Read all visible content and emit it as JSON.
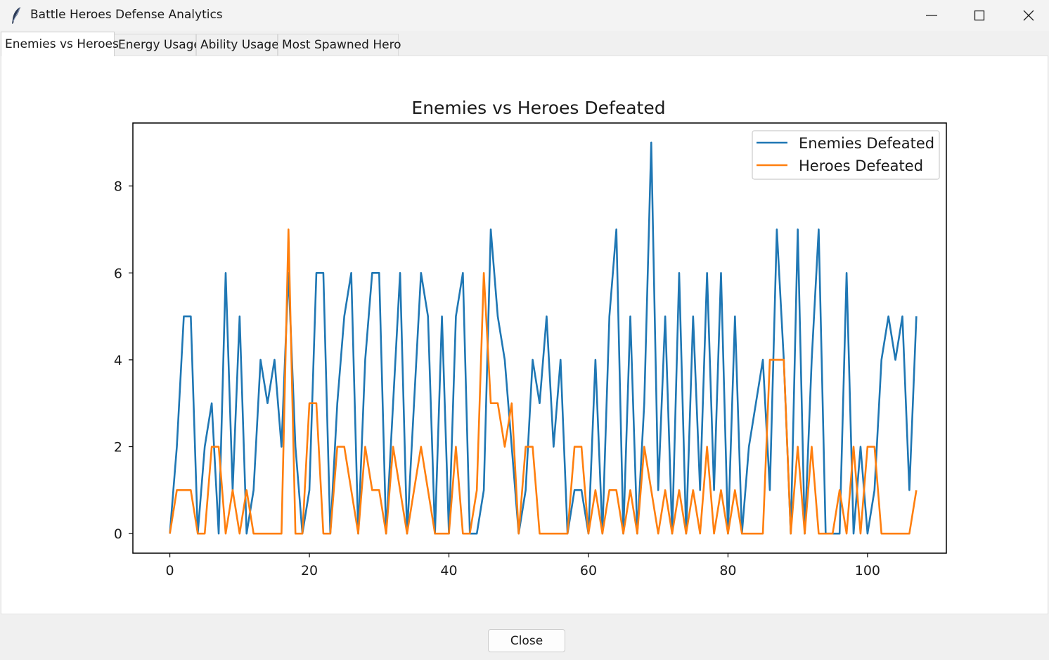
{
  "window": {
    "title": "Battle Heroes Defense Analytics"
  },
  "tabs": [
    {
      "label": "Enemies vs Heroes",
      "active": true
    },
    {
      "label": "Energy Usage",
      "active": false
    },
    {
      "label": "Ability Usage",
      "active": false
    },
    {
      "label": "Most Spawned Hero",
      "active": false
    }
  ],
  "footer": {
    "close_label": "Close"
  },
  "icons": {
    "app": "feather-icon",
    "minimize": "minimize-icon",
    "maximize": "maximize-icon",
    "close": "close-icon"
  },
  "chart_data": {
    "type": "line",
    "title": "Enemies vs Heroes Defeated",
    "xlabel": "",
    "ylabel": "",
    "xlim": [
      -5.3,
      111.3
    ],
    "ylim": [
      -0.45,
      9.45
    ],
    "xticks": [
      0,
      20,
      40,
      60,
      80,
      100
    ],
    "yticks": [
      0,
      2,
      4,
      6,
      8
    ],
    "grid": false,
    "legend": "top-right",
    "series": [
      {
        "name": "Enemies Defeated",
        "color": "#1f77b4",
        "values": [
          0,
          2,
          5,
          5,
          0,
          2,
          3,
          0,
          6,
          1,
          5,
          0,
          1,
          4,
          3,
          4,
          2,
          6,
          2,
          0,
          1,
          6,
          6,
          0,
          3,
          5,
          6,
          0,
          4,
          6,
          6,
          0,
          3,
          6,
          0,
          3,
          6,
          5,
          0,
          5,
          0,
          5,
          6,
          0,
          0,
          1,
          7,
          5,
          4,
          2,
          0,
          1,
          4,
          3,
          5,
          2,
          4,
          0,
          1,
          1,
          0,
          4,
          0,
          5,
          7,
          0,
          5,
          0,
          3,
          9,
          1,
          5,
          0,
          6,
          0,
          5,
          1,
          6,
          1,
          6,
          0,
          5,
          0,
          2,
          3,
          4,
          1,
          7,
          4,
          0,
          7,
          0,
          4,
          7,
          0,
          0,
          0,
          6,
          0,
          2,
          0,
          1,
          4,
          5,
          4,
          5,
          1,
          5
        ]
      },
      {
        "name": "Heroes Defeated",
        "color": "#ff7f0e",
        "values": [
          0,
          1,
          1,
          1,
          0,
          0,
          2,
          2,
          0,
          1,
          0,
          1,
          0,
          0,
          0,
          0,
          0,
          7,
          0,
          0,
          3,
          3,
          0,
          0,
          2,
          2,
          1,
          0,
          2,
          1,
          1,
          0,
          2,
          1,
          0,
          1,
          2,
          1,
          0,
          0,
          0,
          2,
          0,
          0,
          1,
          6,
          3,
          3,
          2,
          3,
          0,
          2,
          2,
          0,
          0,
          0,
          0,
          0,
          2,
          2,
          0,
          1,
          0,
          1,
          1,
          0,
          1,
          0,
          2,
          1,
          0,
          1,
          0,
          1,
          0,
          1,
          0,
          2,
          0,
          1,
          0,
          1,
          0,
          0,
          0,
          0,
          4,
          4,
          4,
          0,
          2,
          0,
          2,
          0,
          0,
          0,
          1,
          0,
          2,
          0,
          2,
          2,
          0,
          0,
          0,
          0,
          0,
          1
        ]
      }
    ]
  }
}
